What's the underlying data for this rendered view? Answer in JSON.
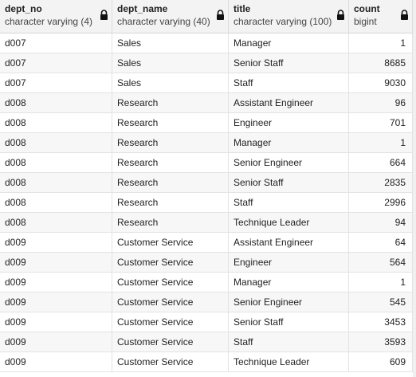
{
  "columns": [
    {
      "name": "dept_no",
      "type": "character varying (4)"
    },
    {
      "name": "dept_name",
      "type": "character varying (40)"
    },
    {
      "name": "title",
      "type": "character varying (100)"
    },
    {
      "name": "count",
      "type": "bigint"
    }
  ],
  "rows": [
    [
      "d007",
      "Sales",
      "Manager",
      "1"
    ],
    [
      "d007",
      "Sales",
      "Senior Staff",
      "8685"
    ],
    [
      "d007",
      "Sales",
      "Staff",
      "9030"
    ],
    [
      "d008",
      "Research",
      "Assistant Engineer",
      "96"
    ],
    [
      "d008",
      "Research",
      "Engineer",
      "701"
    ],
    [
      "d008",
      "Research",
      "Manager",
      "1"
    ],
    [
      "d008",
      "Research",
      "Senior Engineer",
      "664"
    ],
    [
      "d008",
      "Research",
      "Senior Staff",
      "2835"
    ],
    [
      "d008",
      "Research",
      "Staff",
      "2996"
    ],
    [
      "d008",
      "Research",
      "Technique Leader",
      "94"
    ],
    [
      "d009",
      "Customer Service",
      "Assistant Engineer",
      "64"
    ],
    [
      "d009",
      "Customer Service",
      "Engineer",
      "564"
    ],
    [
      "d009",
      "Customer Service",
      "Manager",
      "1"
    ],
    [
      "d009",
      "Customer Service",
      "Senior Engineer",
      "545"
    ],
    [
      "d009",
      "Customer Service",
      "Senior Staff",
      "3453"
    ],
    [
      "d009",
      "Customer Service",
      "Staff",
      "3593"
    ],
    [
      "d009",
      "Customer Service",
      "Technique Leader",
      "609"
    ]
  ],
  "icons": {
    "lock": "lock-icon"
  }
}
